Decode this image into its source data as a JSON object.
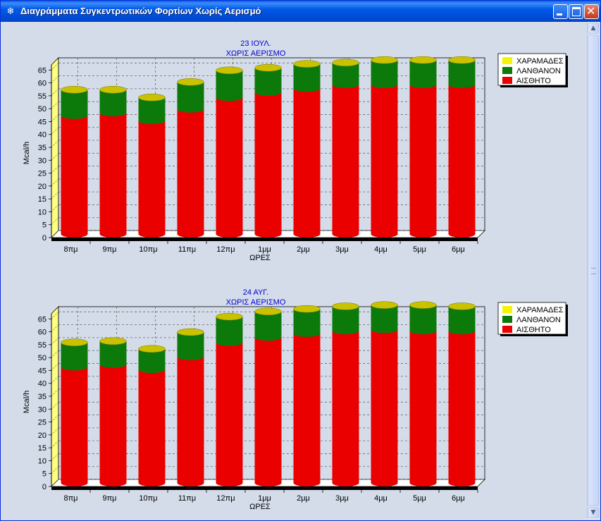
{
  "window": {
    "title": "Διαγράμματα Συγκεντρωτικών Φορτίων Χωρίς Αερισμό",
    "icon": "snowflake-icon"
  },
  "colors": {
    "series": [
      "#eb0000",
      "#0b7a0b",
      "#f5f500"
    ],
    "cap": "#c9c200",
    "title": "#0000cc"
  },
  "chart_data": [
    {
      "type": "bar",
      "stacked": true,
      "title": "23 ΙΟΥΛ.",
      "subtitle": "ΧΩΡΙΣ ΑΕΡΙΣΜΟ",
      "xlabel": "ΩΡΕΣ",
      "ylabel": "Mcal/h",
      "ylim": [
        0,
        67
      ],
      "yticks": [
        0,
        5,
        10,
        15,
        20,
        25,
        30,
        35,
        40,
        45,
        50,
        55,
        60,
        65
      ],
      "grid": true,
      "legend_position": "right",
      "categories": [
        "8πμ",
        "9πμ",
        "10πμ",
        "11πμ",
        "12πμ",
        "1μμ",
        "2μμ",
        "3μμ",
        "4μμ",
        "5μμ",
        "6μμ"
      ],
      "series": [
        {
          "name": "ΑΙΣΘΗΤΟ",
          "values": [
            46,
            47,
            44,
            48.5,
            53,
            55,
            56.5,
            58,
            58,
            58,
            58
          ]
        },
        {
          "name": "ΛΑΝΘΑΝΟΝ",
          "values": [
            10,
            9,
            9,
            10.5,
            10.5,
            9.5,
            9.5,
            8.5,
            9.5,
            9.5,
            9.5
          ]
        },
        {
          "name": "ΧΑΡΑΜΑΔΕΣ",
          "values": [
            0,
            0,
            0,
            0,
            0,
            0,
            0,
            0,
            0,
            0,
            0
          ]
        }
      ],
      "legend": [
        "ΧΑΡΑΜΑΔΕΣ",
        "ΛΑΝΘΑΝΟΝ",
        "ΑΙΣΘΗΤΟ"
      ]
    },
    {
      "type": "bar",
      "stacked": true,
      "title": "24 ΑΥΓ.",
      "subtitle": "ΧΩΡΙΣ ΑΕΡΙΣΜΟ",
      "xlabel": "ΩΡΕΣ",
      "ylabel": "Mcal/h",
      "ylim": [
        0,
        67
      ],
      "yticks": [
        0,
        5,
        10,
        15,
        20,
        25,
        30,
        35,
        40,
        45,
        50,
        55,
        60,
        65
      ],
      "grid": true,
      "legend_position": "right",
      "categories": [
        "8πμ",
        "9πμ",
        "10πμ",
        "11πμ",
        "12πμ",
        "1μμ",
        "2μμ",
        "3μμ",
        "4μμ",
        "5μμ",
        "6μμ"
      ],
      "series": [
        {
          "name": "ΑΙΣΘΗΤΟ",
          "values": [
            45,
            46,
            44,
            49,
            54.5,
            56.5,
            58,
            59,
            59.5,
            59,
            59
          ]
        },
        {
          "name": "ΛΑΝΘΑΝΟΝ",
          "values": [
            9.5,
            9,
            8,
            9.5,
            10,
            10,
            9.5,
            9.5,
            9.5,
            10,
            9.5
          ]
        },
        {
          "name": "ΧΑΡΑΜΑΔΕΣ",
          "values": [
            0,
            0,
            0,
            0,
            0,
            0,
            0,
            0,
            0,
            0,
            0
          ]
        }
      ],
      "legend": [
        "ΧΑΡΑΜΑΔΕΣ",
        "ΛΑΝΘΑΝΟΝ",
        "ΑΙΣΘΗΤΟ"
      ]
    }
  ]
}
